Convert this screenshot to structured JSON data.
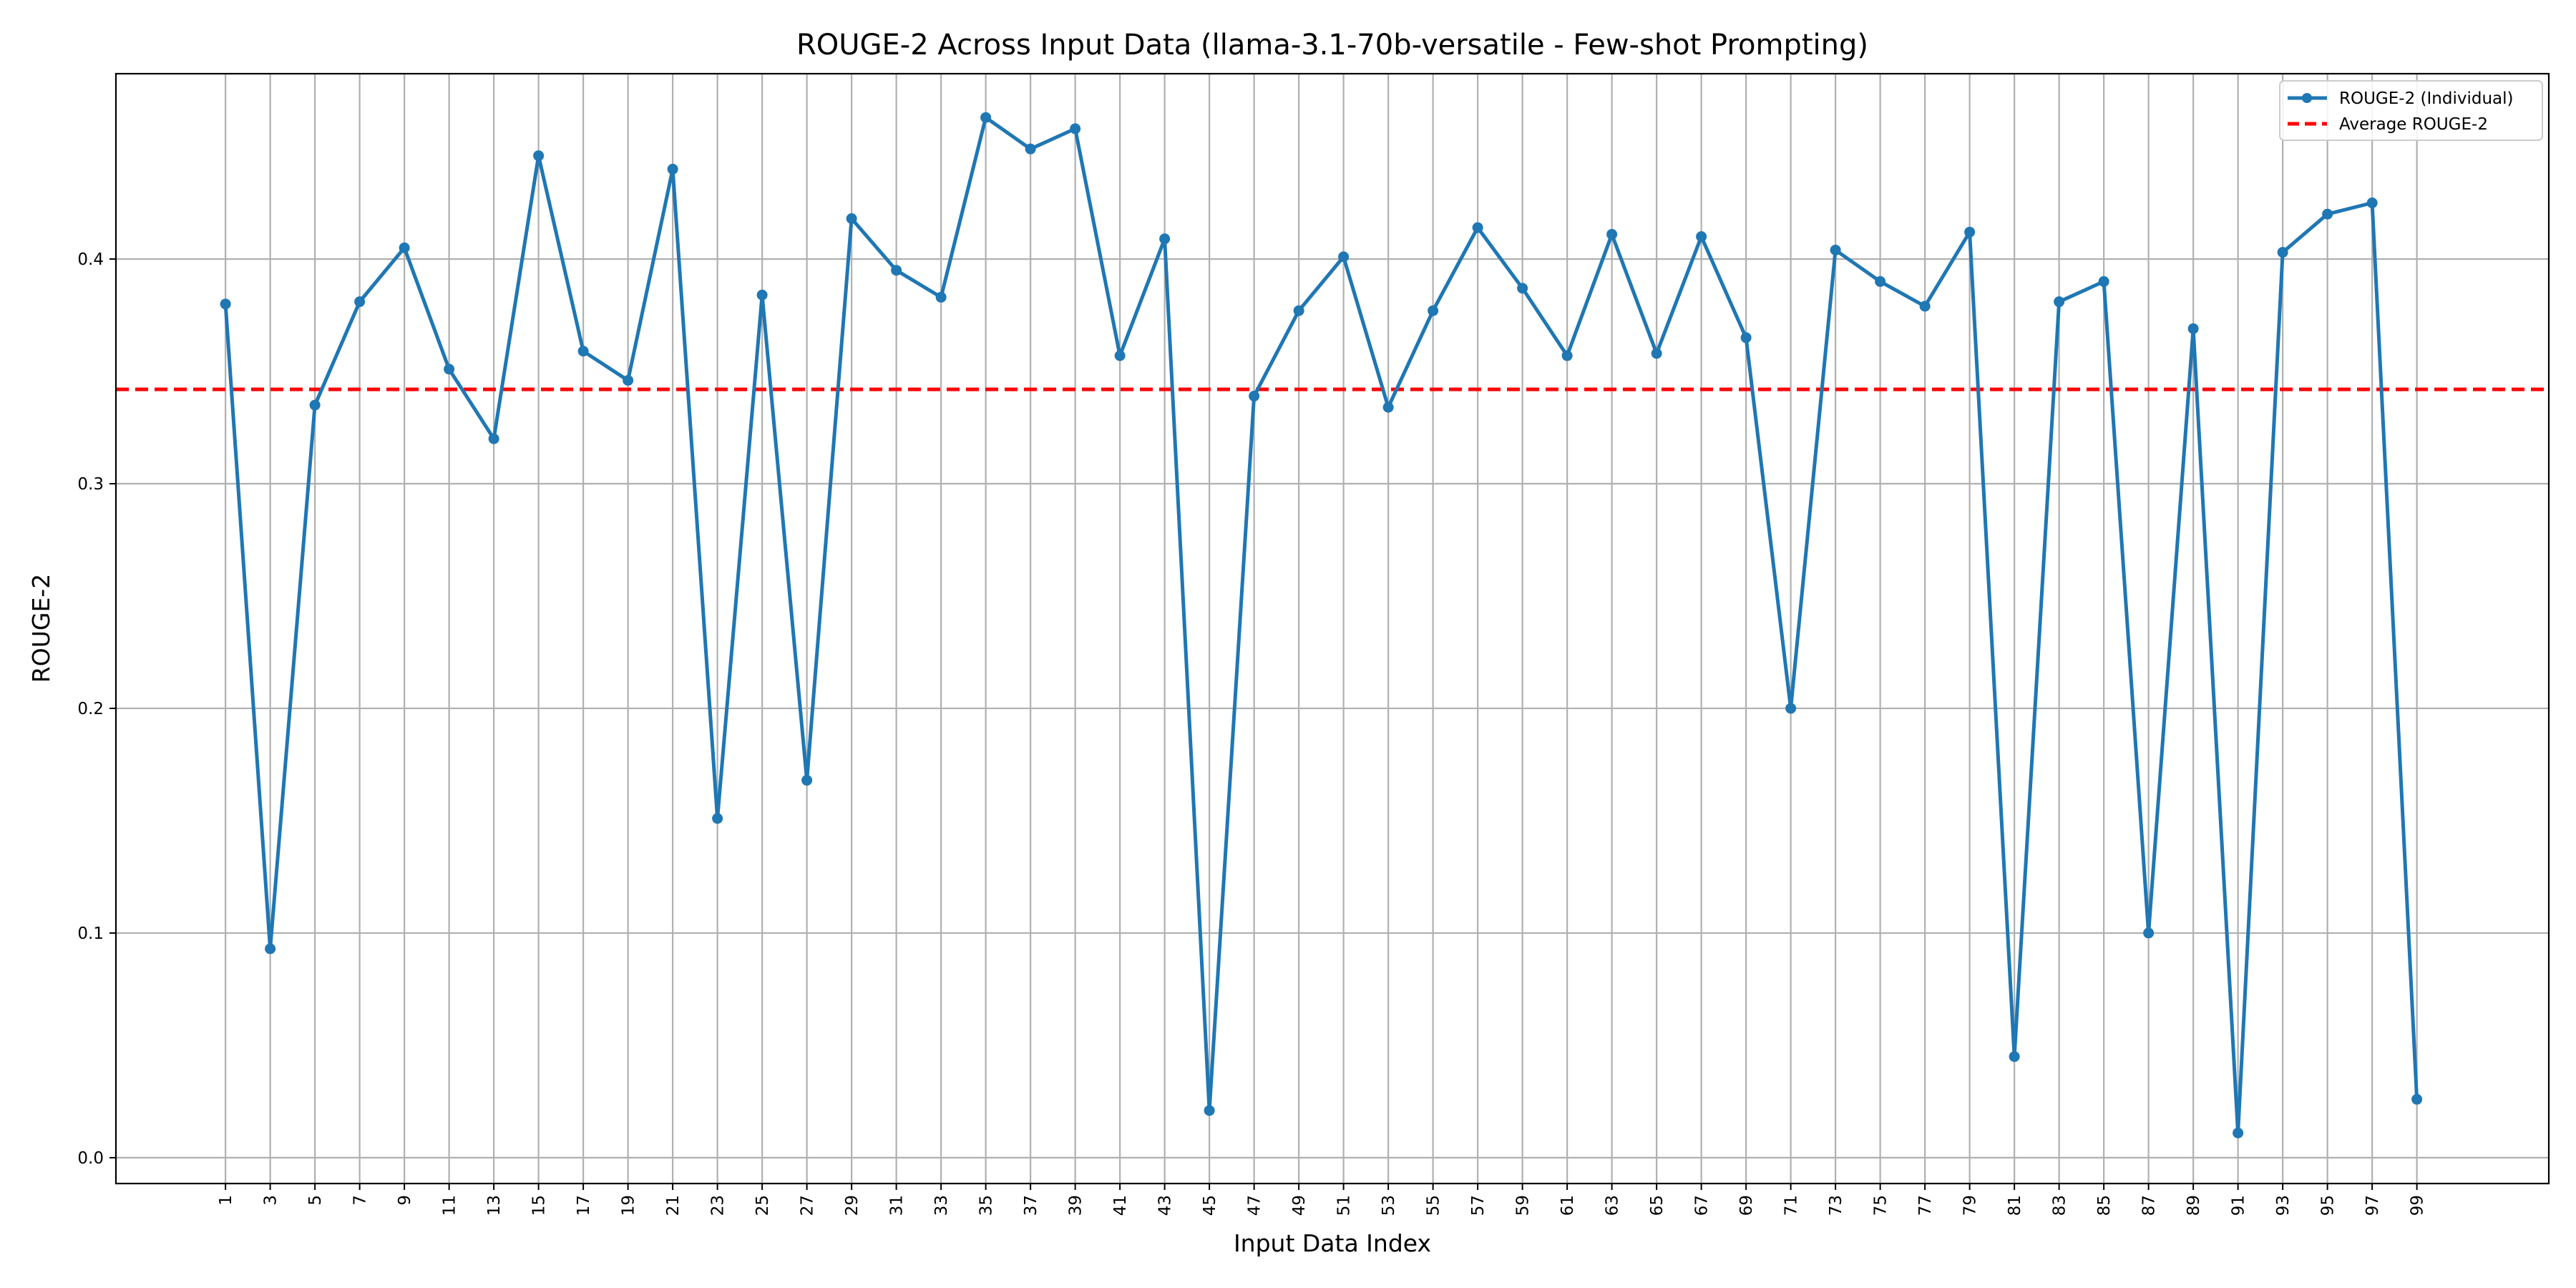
{
  "chart_data": {
    "type": "line",
    "title": "ROUGE-2 Across Input Data (llama-3.1-70b-versatile - Few-shot Prompting)",
    "xlabel": "Input Data Index",
    "ylabel": "ROUGE-2",
    "xlim": [
      -3.9,
      104.9
    ],
    "ylim": [
      -0.0115,
      0.4825
    ],
    "y_ticks": [
      0.0,
      0.1,
      0.2,
      0.3,
      0.4
    ],
    "y_tick_labels": [
      "0.0",
      "0.1",
      "0.2",
      "0.3",
      "0.4"
    ],
    "x_ticks": [
      1,
      3,
      5,
      7,
      9,
      11,
      13,
      15,
      17,
      19,
      21,
      23,
      25,
      27,
      29,
      31,
      33,
      35,
      37,
      39,
      41,
      43,
      45,
      47,
      49,
      51,
      53,
      55,
      57,
      59,
      61,
      63,
      65,
      67,
      69,
      71,
      73,
      75,
      77,
      79,
      81,
      83,
      85,
      87,
      89,
      91,
      93,
      95,
      97,
      99
    ],
    "x_tick_labels": [
      "1",
      "3",
      "5",
      "7",
      "9",
      "11",
      "13",
      "15",
      "17",
      "19",
      "21",
      "23",
      "25",
      "27",
      "29",
      "31",
      "33",
      "35",
      "37",
      "39",
      "41",
      "43",
      "45",
      "47",
      "49",
      "51",
      "53",
      "55",
      "57",
      "59",
      "61",
      "63",
      "65",
      "67",
      "69",
      "71",
      "73",
      "75",
      "77",
      "79",
      "81",
      "83",
      "85",
      "87",
      "89",
      "91",
      "93",
      "95",
      "97",
      "99"
    ],
    "grid": true,
    "legend_position": "top-right",
    "series": [
      {
        "name": "ROUGE-2 (Individual)",
        "style": "line-with-markers",
        "color": "#1f77b4",
        "x": [
          1,
          3,
          5,
          7,
          9,
          11,
          13,
          15,
          17,
          19,
          21,
          23,
          25,
          27,
          29,
          31,
          33,
          35,
          37,
          39,
          41,
          43,
          45,
          47,
          49,
          51,
          53,
          55,
          57,
          59,
          61,
          63,
          65,
          67,
          69,
          71,
          73,
          75,
          77,
          79,
          81,
          83,
          85,
          87,
          89,
          91,
          93,
          95,
          97,
          99
        ],
        "values": [
          0.38,
          0.093,
          0.335,
          0.381,
          0.405,
          0.351,
          0.32,
          0.446,
          0.359,
          0.346,
          0.44,
          0.151,
          0.384,
          0.168,
          0.418,
          0.395,
          0.383,
          0.463,
          0.449,
          0.458,
          0.357,
          0.409,
          0.021,
          0.339,
          0.377,
          0.401,
          0.334,
          0.377,
          0.414,
          0.387,
          0.357,
          0.411,
          0.358,
          0.41,
          0.365,
          0.2,
          0.404,
          0.39,
          0.379,
          0.412,
          0.045,
          0.381,
          0.39,
          0.1,
          0.369,
          0.011,
          0.403,
          0.42,
          0.425,
          0.026
        ]
      }
    ],
    "reference_lines": [
      {
        "name": "Average ROUGE-2",
        "orientation": "horizontal",
        "style": "dashed",
        "color": "#ff0000",
        "value": 0.342
      }
    ]
  }
}
